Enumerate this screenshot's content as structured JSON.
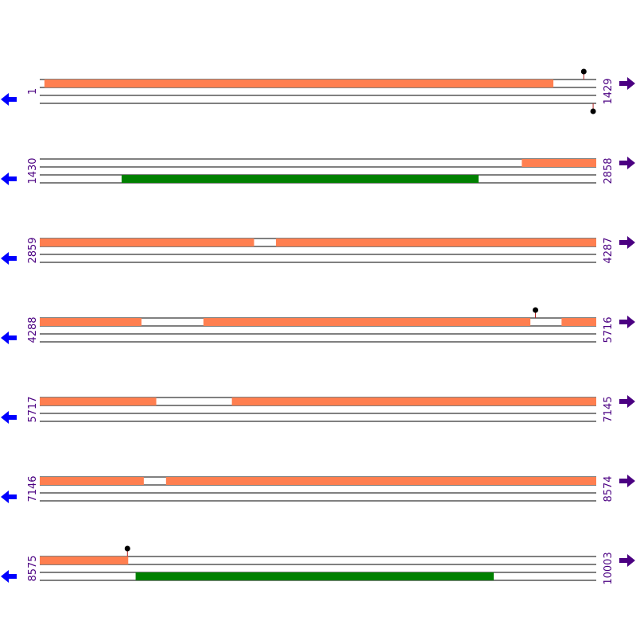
{
  "colors": {
    "orf_forward": "#ff7f50",
    "orf_reverse": "#008000",
    "lane_line": "#000000",
    "marker_head": "#000000",
    "marker_stem": "#b22222",
    "start_label": "#4b0082",
    "end_label": "#4b0082",
    "left_arrow": "#0000ff",
    "right_arrow": "#4b0082"
  },
  "icons": {
    "left": "arrow-left-icon",
    "right": "arrow-right-icon",
    "marker": "lollipop-marker-icon"
  },
  "rows": [
    {
      "start": "1",
      "end": "1429",
      "from": 1,
      "to": 1429,
      "features": [
        {
          "lane": 1,
          "kind": "forward",
          "from": 13,
          "to": 1319
        }
      ],
      "markers": [
        {
          "pos": 1397,
          "side": "above"
        },
        {
          "pos": 1421,
          "side": "below"
        }
      ]
    },
    {
      "start": "1430",
      "end": "2858",
      "from": 1430,
      "to": 2858,
      "features": [
        {
          "lane": 1,
          "kind": "forward",
          "from": 2667,
          "to": 2858
        },
        {
          "lane": 3,
          "kind": "reverse",
          "from": 1640,
          "to": 2556
        }
      ],
      "markers": []
    },
    {
      "start": "2859",
      "end": "4287",
      "from": 2859,
      "to": 4287,
      "features": [
        {
          "lane": 1,
          "kind": "forward",
          "from": 2859,
          "to": 3409
        },
        {
          "lane": 1,
          "kind": "forward",
          "from": 3465,
          "to": 4287
        }
      ],
      "markers": []
    },
    {
      "start": "4288",
      "end": "5716",
      "from": 4288,
      "to": 5716,
      "features": [
        {
          "lane": 1,
          "kind": "forward",
          "from": 4288,
          "to": 4549
        },
        {
          "lane": 1,
          "kind": "forward",
          "from": 4708,
          "to": 5547
        },
        {
          "lane": 1,
          "kind": "forward",
          "from": 5627,
          "to": 5716
        }
      ],
      "markers": [
        {
          "pos": 5560,
          "side": "above"
        }
      ]
    },
    {
      "start": "5717",
      "end": "7145",
      "from": 5717,
      "to": 7145,
      "features": [
        {
          "lane": 1,
          "kind": "forward",
          "from": 5717,
          "to": 6016
        },
        {
          "lane": 1,
          "kind": "forward",
          "from": 6210,
          "to": 7145
        }
      ],
      "markers": []
    },
    {
      "start": "7146",
      "end": "8574",
      "from": 7146,
      "to": 8574,
      "features": [
        {
          "lane": 1,
          "kind": "forward",
          "from": 7146,
          "to": 7413
        },
        {
          "lane": 1,
          "kind": "forward",
          "from": 7470,
          "to": 8574
        }
      ],
      "markers": []
    },
    {
      "start": "8575",
      "end": "10003",
      "from": 8575,
      "to": 10003,
      "features": [
        {
          "lane": 1,
          "kind": "forward",
          "from": 8575,
          "to": 8802
        },
        {
          "lane": 3,
          "kind": "reverse",
          "from": 8821,
          "to": 9740
        }
      ],
      "markers": [
        {
          "pos": 8800,
          "side": "above"
        }
      ]
    }
  ]
}
